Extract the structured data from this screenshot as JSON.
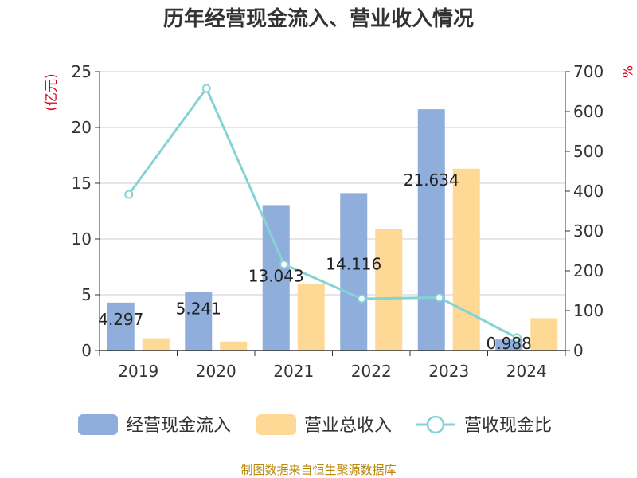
{
  "chart_data": {
    "type": "bar",
    "title": "历年经营现金流入、营业收入情况",
    "categories": [
      "2019",
      "2020",
      "2021",
      "2022",
      "2023",
      "2024"
    ],
    "left_axis_unit": "(亿元)",
    "right_axis_unit": "%",
    "ylim_left": [
      0,
      25
    ],
    "yticks_left": [
      "0",
      "5",
      "10",
      "15",
      "20",
      "25"
    ],
    "ylim_right": [
      0,
      700
    ],
    "yticks_right": [
      "0",
      "100",
      "200",
      "300",
      "400",
      "500",
      "600",
      "700"
    ],
    "grid": true,
    "legend_position": "bottom",
    "series": [
      {
        "name": "经营现金流入",
        "type": "bar",
        "axis": "left",
        "color": "#8faedb",
        "values": [
          4.297,
          5.241,
          13.043,
          14.116,
          21.634,
          0.988
        ],
        "labels": [
          "4.297",
          "5.241",
          "13.043",
          "14.116",
          "21.634",
          "0.988"
        ]
      },
      {
        "name": "营业总收入",
        "type": "bar",
        "axis": "left",
        "color": "#fed895",
        "values": [
          1.1,
          0.8,
          6.0,
          10.9,
          16.3,
          2.9
        ]
      },
      {
        "name": "营收现金比",
        "type": "line",
        "axis": "right",
        "color": "#86d3d6",
        "values": [
          392,
          658,
          216,
          130,
          133,
          32
        ]
      }
    ],
    "source": "制图数据来自恒生聚源数据库"
  }
}
